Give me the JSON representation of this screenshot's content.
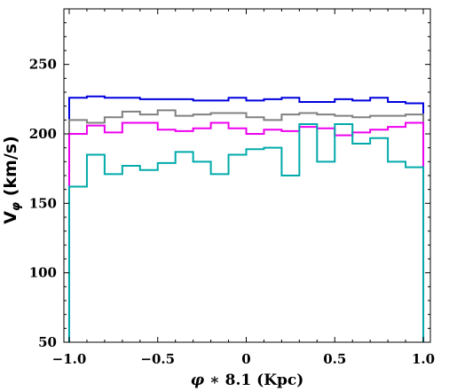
{
  "chart_data": {
    "type": "line",
    "xlabel": {
      "main": "φ",
      "rest": " ∗ 8.1 (Kpc)"
    },
    "ylabel": {
      "main": "V",
      "sub": "φ",
      "rest": " (km/s)"
    },
    "xlim": [
      -1.03,
      1.04
    ],
    "ylim": [
      50,
      290
    ],
    "x_tick_labels": [
      "−1.0",
      "−0.5",
      "0",
      "0.5",
      "1.0"
    ],
    "x_ticks": [
      -1.0,
      -0.5,
      0.0,
      0.5,
      1.0
    ],
    "y_tick_labels": [
      "50",
      "100",
      "150",
      "200",
      "250"
    ],
    "y_ticks": [
      50,
      100,
      150,
      200,
      250
    ],
    "bin_edges": [
      -1.0,
      -0.9,
      -0.8,
      -0.7,
      -0.6,
      -0.5,
      -0.4,
      -0.3,
      -0.2,
      -0.1,
      0.0,
      0.1,
      0.2,
      0.3,
      0.4,
      0.5,
      0.6,
      0.7,
      0.8,
      0.9,
      1.0
    ],
    "histtype": "step",
    "series": [
      {
        "color": "#0000dd",
        "values": [
          226,
          227,
          226,
          226,
          225,
          225,
          225,
          224,
          224,
          226,
          224,
          225,
          226,
          223,
          223,
          225,
          224,
          226,
          223,
          222
        ]
      },
      {
        "color": "#808080",
        "values": [
          210,
          208,
          212,
          216,
          214,
          217,
          213,
          214,
          215,
          215,
          212,
          210,
          214,
          215,
          214,
          213,
          212,
          213,
          213,
          214
        ]
      },
      {
        "color": "#ee00ee",
        "values": [
          200,
          206,
          201,
          208,
          208,
          203,
          202,
          204,
          208,
          204,
          200,
          203,
          202,
          205,
          204,
          199,
          201,
          203,
          205,
          208
        ]
      },
      {
        "color": "#00aaaa",
        "values": [
          162,
          185,
          171,
          177,
          174,
          179,
          187,
          180,
          171,
          185,
          189,
          190,
          170,
          207,
          180,
          207,
          193,
          197,
          180,
          176
        ]
      }
    ]
  }
}
